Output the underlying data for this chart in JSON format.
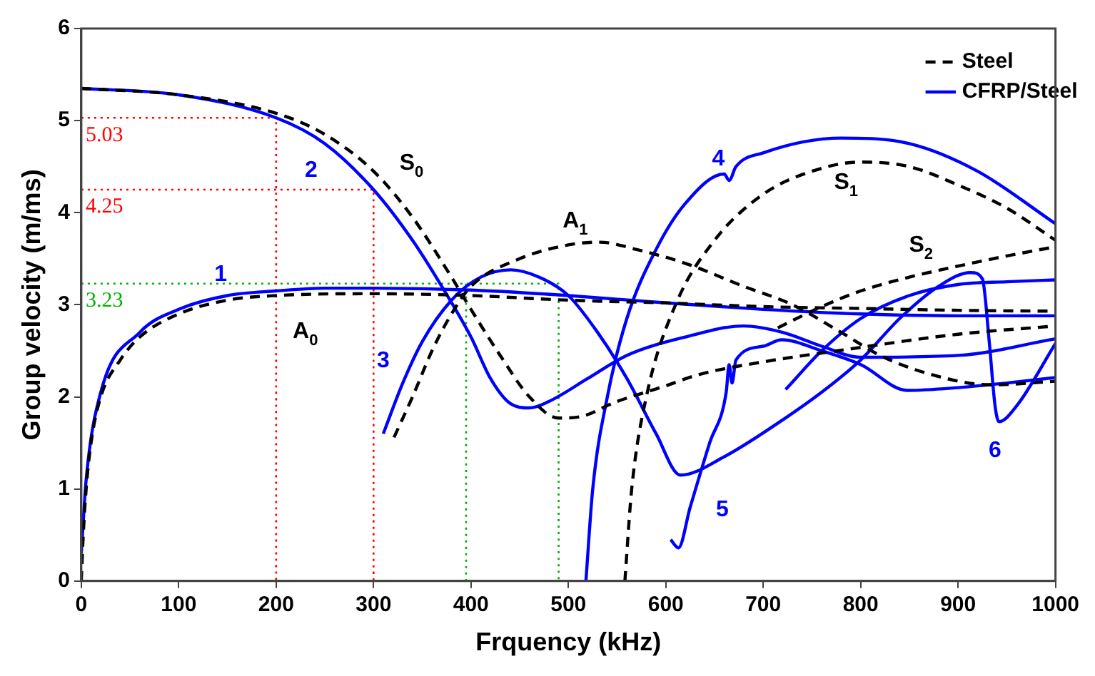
{
  "chart_data": {
    "type": "line",
    "xlabel": "Frquency (kHz)",
    "ylabel": "Group velocity (m/ms)",
    "xlim": [
      0,
      1000
    ],
    "ylim": [
      0,
      6
    ],
    "xticks": [
      0,
      100,
      200,
      300,
      400,
      500,
      600,
      700,
      800,
      900,
      1000
    ],
    "yticks": [
      0,
      1,
      2,
      3,
      4,
      5,
      6
    ],
    "grid": false,
    "legend": "top right",
    "marker": "none",
    "series": [
      {
        "name": "Steel",
        "color": "#000000",
        "line_style": "dashed",
        "x": [
          0,
          2,
          5,
          10,
          20,
          40,
          60,
          100,
          150,
          200,
          300,
          400,
          500,
          600,
          700,
          800,
          900,
          1000
        ],
        "values": [
          0,
          0.5,
          1.0,
          1.5,
          2.0,
          2.4,
          2.65,
          2.9,
          3.05,
          3.1,
          3.12,
          3.1,
          3.05,
          3.02,
          2.98,
          2.96,
          2.94,
          2.93
        ]
      },
      {
        "color": "#000000",
        "line_style": "dashed",
        "x": [
          0,
          100,
          200,
          250,
          300,
          340,
          380,
          400,
          430,
          460,
          490,
          510,
          550,
          600,
          633,
          700,
          776,
          900,
          1000
        ],
        "values": [
          5.35,
          5.28,
          5.08,
          4.85,
          4.45,
          3.95,
          3.3,
          2.95,
          2.45,
          2.0,
          1.77,
          1.78,
          1.95,
          2.12,
          2.24,
          2.38,
          2.5,
          2.68,
          2.77
        ]
      },
      {
        "color": "#000000",
        "line_style": "dashed",
        "x": [
          321,
          340,
          360,
          380,
          400,
          450,
          500,
          532,
          570,
          620,
          680,
          730,
          780,
          820,
          870,
          934,
          1000
        ],
        "values": [
          1.56,
          2.0,
          2.5,
          2.9,
          3.2,
          3.5,
          3.65,
          3.68,
          3.6,
          3.45,
          3.2,
          3.0,
          2.7,
          2.45,
          2.25,
          2.13,
          2.17
        ]
      },
      {
        "color": "#000000",
        "line_style": "dashed",
        "x": [
          558,
          565,
          580,
          610,
          650,
          700,
          750,
          800,
          850,
          900,
          950,
          1000
        ],
        "values": [
          0,
          1.0,
          2.0,
          3.0,
          3.7,
          4.2,
          4.45,
          4.55,
          4.5,
          4.3,
          4.05,
          3.7
        ]
      },
      {
        "color": "#000000",
        "line_style": "dashed",
        "x": [
          715,
          760,
          800,
          850,
          900,
          950,
          1000
        ],
        "values": [
          2.75,
          2.98,
          3.15,
          3.3,
          3.42,
          3.53,
          3.63
        ]
      },
      {
        "name": "CFRP/Steel",
        "color": "#0000ff",
        "line_style": "solid",
        "x": [
          0,
          5,
          20,
          60,
          100,
          150,
          200,
          250,
          300,
          400,
          500,
          600,
          700,
          800,
          900,
          1000
        ],
        "values": [
          0.3,
          1.1,
          2.05,
          2.7,
          2.95,
          3.1,
          3.15,
          3.18,
          3.18,
          3.16,
          3.1,
          3.02,
          2.95,
          2.9,
          2.88,
          2.88
        ]
      },
      {
        "color": "#0000ff",
        "line_style": "solid",
        "x": [
          0,
          100,
          200,
          250,
          300,
          340,
          370,
          400,
          420,
          440,
          460,
          480,
          520,
          560,
          620,
          680,
          720,
          760,
          800,
          900,
          1000
        ],
        "values": [
          5.35,
          5.28,
          5.03,
          4.75,
          4.25,
          3.7,
          3.2,
          2.65,
          2.2,
          1.93,
          1.88,
          1.95,
          2.2,
          2.45,
          2.65,
          2.77,
          2.7,
          2.55,
          2.43,
          2.45,
          2.63
        ]
      },
      {
        "color": "#0000ff",
        "line_style": "solid",
        "x": [
          310,
          330,
          350,
          380,
          410,
          441,
          470,
          500,
          530,
          560,
          590,
          615,
          660,
          720,
          760,
          800,
          840,
          880,
          913,
          925,
          932,
          938,
          942,
          960,
          1000
        ],
        "values": [
          1.6,
          2.15,
          2.6,
          3.05,
          3.3,
          3.38,
          3.3,
          3.1,
          2.7,
          2.2,
          1.6,
          1.15,
          1.35,
          1.75,
          2.05,
          2.4,
          2.85,
          3.2,
          3.35,
          3.28,
          2.6,
          1.9,
          1.73,
          1.9,
          2.58
        ]
      },
      {
        "color": "#0000ff",
        "line_style": "solid",
        "x": [
          518,
          525,
          540,
          560,
          590,
          620,
          660,
          665,
          672,
          700,
          780,
          850,
          920,
          1000
        ],
        "values": [
          0,
          1.0,
          2.0,
          2.85,
          3.6,
          4.1,
          4.42,
          4.35,
          4.5,
          4.65,
          4.81,
          4.75,
          4.45,
          3.88
        ]
      },
      {
        "color": "#0000ff",
        "line_style": "solid",
        "x": [
          605,
          613,
          625,
          645,
          662,
          665,
          668,
          672,
          700,
          719,
          760,
          800,
          848,
          900,
          950,
          1000
        ],
        "values": [
          0.45,
          0.36,
          0.8,
          1.5,
          2.05,
          2.35,
          2.15,
          2.4,
          2.55,
          2.62,
          2.5,
          2.35,
          2.07,
          2.1,
          2.15,
          2.21
        ]
      },
      {
        "color": "#0000ff",
        "line_style": "solid",
        "x": [
          723,
          760,
          800,
          850,
          900,
          950,
          1000
        ],
        "values": [
          2.08,
          2.5,
          2.85,
          3.1,
          3.22,
          3.25,
          3.27
        ]
      },
      {
        "color": "#ff0000",
        "line_style": "dotted",
        "x": [
          0,
          200,
          200
        ],
        "values": [
          5.03,
          5.03,
          0
        ]
      },
      {
        "color": "#ff0000",
        "line_style": "dotted",
        "x": [
          0,
          300,
          300
        ],
        "values": [
          4.25,
          4.25,
          0
        ]
      },
      {
        "color": "#00b000",
        "line_style": "dotted",
        "x": [
          0,
          490,
          490
        ],
        "values": [
          3.23,
          3.23,
          0
        ]
      },
      {
        "color": "#00b000",
        "line_style": "dotted",
        "x": [
          395,
          395
        ],
        "values": [
          3.23,
          0
        ]
      }
    ],
    "annotations": [
      "5.03",
      "4.25",
      "3.23",
      "1",
      "2",
      "3",
      "4",
      "5",
      "6",
      "S$_{0}$",
      "A$_{0}$",
      "A$_{1}$",
      "S$_{1}$",
      "S$_{2}$"
    ]
  }
}
